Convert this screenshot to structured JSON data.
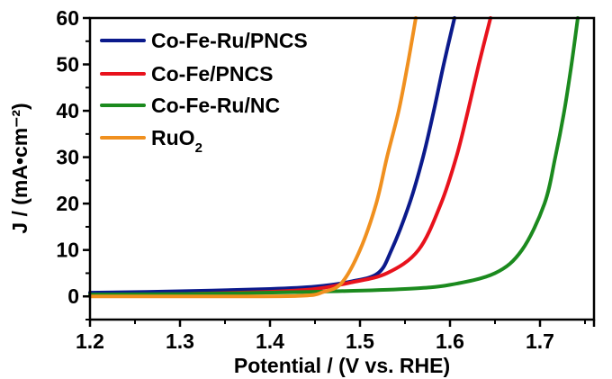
{
  "chart_data": {
    "type": "line",
    "title": "",
    "xlabel": "Potential / (V vs. RHE)",
    "ylabel": "J / (mA•cm⁻²)",
    "xlim": [
      1.2,
      1.76
    ],
    "ylim": [
      -5,
      60
    ],
    "xticks": [
      1.2,
      1.3,
      1.4,
      1.5,
      1.6,
      1.7
    ],
    "xtick_labels": [
      "1.2",
      "1.3",
      "1.4",
      "1.5",
      "1.6",
      "1.7"
    ],
    "yticks": [
      0,
      10,
      20,
      30,
      40,
      50,
      60
    ],
    "ytick_labels": [
      "0",
      "10",
      "20",
      "30",
      "40",
      "50",
      "60"
    ],
    "grid": false,
    "legend_position": "top-left",
    "series": [
      {
        "name": "Co-Fe-Ru/PNCS",
        "color": "#0b1a8c",
        "x": [
          1.2,
          1.3,
          1.4,
          1.45,
          1.49,
          1.52,
          1.535,
          1.555,
          1.57,
          1.582,
          1.593,
          1.605
        ],
        "y": [
          0.8,
          1.1,
          1.6,
          2.1,
          3.2,
          5,
          10,
          20,
          30,
          40,
          50,
          60
        ]
      },
      {
        "name": "Co-Fe/PNCS",
        "color": "#e8121c",
        "x": [
          1.2,
          1.3,
          1.4,
          1.45,
          1.49,
          1.53,
          1.565,
          1.59,
          1.607,
          1.62,
          1.632,
          1.645
        ],
        "y": [
          0.3,
          0.5,
          1.0,
          1.6,
          3,
          5,
          10,
          20,
          30,
          40,
          50,
          60
        ]
      },
      {
        "name": "Co-Fe-Ru/NC",
        "color": "#1b8a1e",
        "x": [
          1.2,
          1.3,
          1.45,
          1.55,
          1.6,
          1.65,
          1.68,
          1.705,
          1.717,
          1.727,
          1.735,
          1.742
        ],
        "y": [
          0.4,
          0.5,
          1.0,
          1.6,
          2.5,
          5,
          10,
          20,
          30,
          40,
          50,
          60
        ]
      },
      {
        "name": "RuO₂",
        "name_main": "RuO",
        "name_sub": "2",
        "color": "#f0901f",
        "x": [
          1.2,
          1.3,
          1.43,
          1.46,
          1.48,
          1.5,
          1.518,
          1.53,
          1.543,
          1.553,
          1.562
        ],
        "y": [
          0,
          0,
          0.1,
          1,
          3,
          10,
          20,
          30,
          40,
          50,
          60
        ]
      }
    ]
  }
}
